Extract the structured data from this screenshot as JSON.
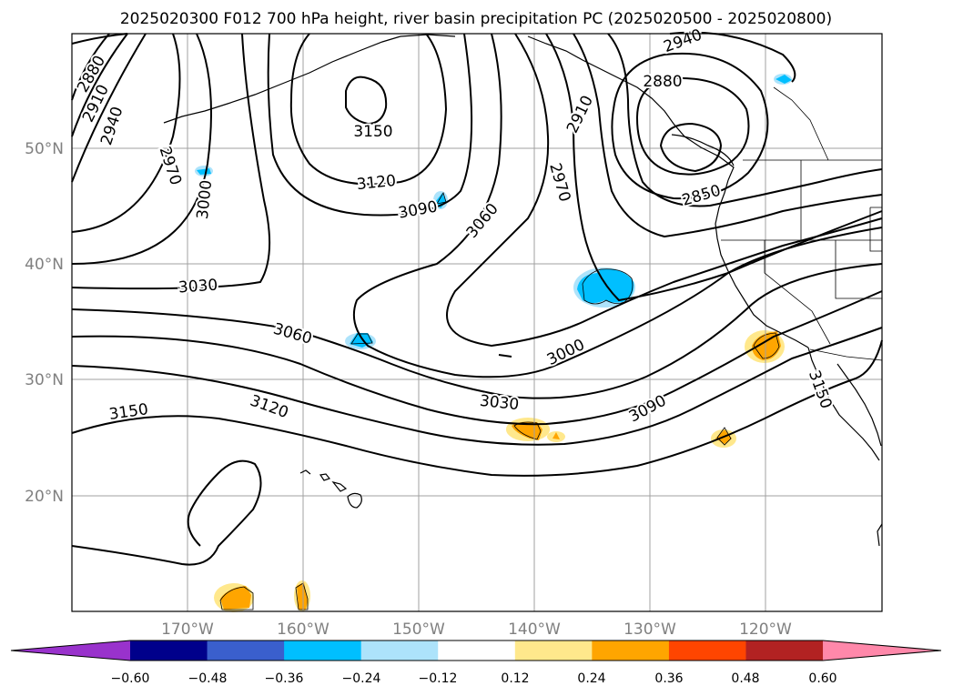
{
  "title": "2025020300 F012 700 hPa height, river basin precipitation PC (2025020500 - 2025020800)",
  "lat_labels": [
    "50°N",
    "40°N",
    "30°N",
    "20°N"
  ],
  "lon_labels": [
    "170°W",
    "160°W",
    "150°W",
    "140°W",
    "130°W",
    "120°W"
  ],
  "contour_labels": {
    "c2880_w": "2880",
    "c2910_w": "2910",
    "c2940_w": "2940",
    "c2970_w": "2970",
    "c3000_w": "3000",
    "c3150_n": "3150",
    "c3120_n": "3120",
    "c3090_n": "3090",
    "c3060_n": "3060",
    "c2970_e": "2970",
    "c2910_e": "2910",
    "c2940_e": "2940",
    "c2880_e": "2880",
    "c2850_e": "2850",
    "c3030_w": "3030",
    "c3060_w": "3060",
    "c3000_s": "3000",
    "c3030_s": "3030",
    "c3090_s": "3090",
    "c3120_s": "3120",
    "c3150_s": "3150",
    "c3150_e": "3150"
  },
  "colorbar": {
    "ticks": [
      "−0.60",
      "−0.48",
      "−0.36",
      "−0.24",
      "−0.12",
      "0.12",
      "0.24",
      "0.36",
      "0.48",
      "0.60"
    ],
    "colors": [
      "#9932cc",
      "#00008b",
      "#3a5fcd",
      "#00bfff",
      "#ade3fb",
      "#ffffff",
      "#ffe88c",
      "#ffa500",
      "#ff4500",
      "#b22222",
      "#ff88aa"
    ]
  },
  "colors": {
    "negative_shade": "#00bfff",
    "negative_light": "#ade3fb",
    "positive_shade": "#ffa500",
    "positive_light": "#ffe88c",
    "grid": "#a0a0a0",
    "axis_label": "#808080"
  }
}
